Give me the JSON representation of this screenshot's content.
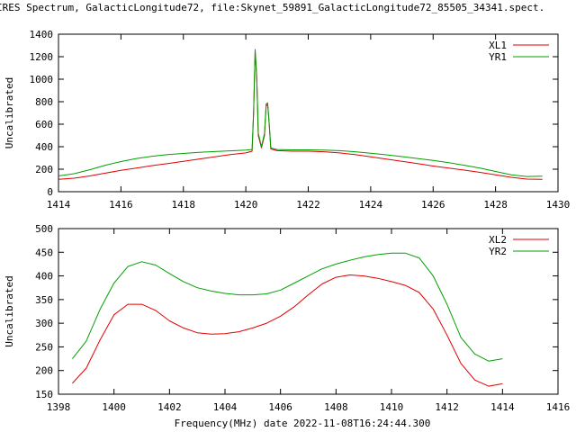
{
  "page_title": "IRES Spectrum, GalacticLongitude72, file:Skynet_59891_GalacticLongitude72_85505_34341.spect.",
  "xlabel": "Frequency(MHz) date 2022-11-08T16:24:44.300",
  "colors": {
    "red": "#e00000",
    "green": "#00a000",
    "axis": "#000000"
  },
  "chart_data": [
    {
      "type": "line",
      "title": "IRES Spectrum, GalacticLongitude72, file:Skynet_59891_GalacticLongitude72_85505_34341.spect.",
      "xlabel": "",
      "ylabel": "Uncalibrated",
      "xlim": [
        1414,
        1430
      ],
      "ylim": [
        0,
        1400
      ],
      "xticks": [
        1414,
        1416,
        1418,
        1420,
        1422,
        1424,
        1426,
        1428,
        1430
      ],
      "yticks": [
        0,
        200,
        400,
        600,
        800,
        1000,
        1200,
        1400
      ],
      "legend_position": "top-right",
      "series": [
        {
          "name": "XL1",
          "color": "#e00000",
          "points": [
            [
              1414.0,
              110
            ],
            [
              1414.5,
              120
            ],
            [
              1415.0,
              140
            ],
            [
              1415.5,
              165
            ],
            [
              1416.0,
              190
            ],
            [
              1416.5,
              210
            ],
            [
              1417.0,
              232
            ],
            [
              1417.5,
              250
            ],
            [
              1418.0,
              270
            ],
            [
              1418.5,
              290
            ],
            [
              1419.0,
              310
            ],
            [
              1419.5,
              330
            ],
            [
              1420.0,
              345
            ],
            [
              1420.2,
              360
            ],
            [
              1420.25,
              700
            ],
            [
              1420.3,
              1250
            ],
            [
              1420.35,
              1000
            ],
            [
              1420.4,
              500
            ],
            [
              1420.5,
              390
            ],
            [
              1420.6,
              500
            ],
            [
              1420.65,
              760
            ],
            [
              1420.7,
              780
            ],
            [
              1420.75,
              600
            ],
            [
              1420.8,
              380
            ],
            [
              1421.0,
              365
            ],
            [
              1421.5,
              360
            ],
            [
              1422.0,
              360
            ],
            [
              1422.5,
              355
            ],
            [
              1423.0,
              345
            ],
            [
              1423.5,
              330
            ],
            [
              1424.0,
              310
            ],
            [
              1424.5,
              290
            ],
            [
              1425.0,
              270
            ],
            [
              1425.5,
              250
            ],
            [
              1426.0,
              228
            ],
            [
              1426.5,
              210
            ],
            [
              1427.0,
              192
            ],
            [
              1427.5,
              172
            ],
            [
              1428.0,
              150
            ],
            [
              1428.5,
              128
            ],
            [
              1429.0,
              112
            ],
            [
              1429.5,
              110
            ]
          ]
        },
        {
          "name": "YR1",
          "color": "#00a000",
          "points": [
            [
              1414.0,
              140
            ],
            [
              1414.5,
              160
            ],
            [
              1415.0,
              195
            ],
            [
              1415.5,
              235
            ],
            [
              1416.0,
              268
            ],
            [
              1416.5,
              295
            ],
            [
              1417.0,
              315
            ],
            [
              1417.5,
              330
            ],
            [
              1418.0,
              340
            ],
            [
              1418.5,
              350
            ],
            [
              1419.0,
              357
            ],
            [
              1419.5,
              363
            ],
            [
              1420.0,
              370
            ],
            [
              1420.2,
              375
            ],
            [
              1420.25,
              720
            ],
            [
              1420.3,
              1265
            ],
            [
              1420.35,
              1020
            ],
            [
              1420.4,
              520
            ],
            [
              1420.5,
              400
            ],
            [
              1420.6,
              520
            ],
            [
              1420.65,
              780
            ],
            [
              1420.7,
              790
            ],
            [
              1420.75,
              610
            ],
            [
              1420.8,
              390
            ],
            [
              1421.0,
              375
            ],
            [
              1421.5,
              372
            ],
            [
              1422.0,
              372
            ],
            [
              1422.5,
              370
            ],
            [
              1423.0,
              365
            ],
            [
              1423.5,
              355
            ],
            [
              1424.0,
              342
            ],
            [
              1424.5,
              328
            ],
            [
              1425.0,
              312
            ],
            [
              1425.5,
              295
            ],
            [
              1426.0,
              278
            ],
            [
              1426.5,
              258
            ],
            [
              1427.0,
              235
            ],
            [
              1427.5,
              210
            ],
            [
              1428.0,
              180
            ],
            [
              1428.5,
              150
            ],
            [
              1429.0,
              135
            ],
            [
              1429.5,
              138
            ]
          ]
        }
      ]
    },
    {
      "type": "line",
      "title": "",
      "xlabel": "Frequency(MHz) date 2022-11-08T16:24:44.300",
      "ylabel": "Uncalibrated",
      "xlim": [
        1398,
        1416
      ],
      "ylim": [
        150,
        500
      ],
      "xticks": [
        1398,
        1400,
        1402,
        1404,
        1406,
        1408,
        1410,
        1412,
        1414,
        1416
      ],
      "yticks": [
        150,
        200,
        250,
        300,
        350,
        400,
        450,
        500
      ],
      "legend_position": "top-right",
      "series": [
        {
          "name": "XL2",
          "color": "#e00000",
          "points": [
            [
              1398.5,
              173
            ],
            [
              1399.0,
              205
            ],
            [
              1399.5,
              265
            ],
            [
              1400.0,
              318
            ],
            [
              1400.5,
              340
            ],
            [
              1401.0,
              340
            ],
            [
              1401.5,
              327
            ],
            [
              1402.0,
              305
            ],
            [
              1402.5,
              290
            ],
            [
              1403.0,
              280
            ],
            [
              1403.5,
              277
            ],
            [
              1404.0,
              278
            ],
            [
              1404.5,
              282
            ],
            [
              1405.0,
              290
            ],
            [
              1405.5,
              300
            ],
            [
              1406.0,
              315
            ],
            [
              1406.5,
              335
            ],
            [
              1407.0,
              360
            ],
            [
              1407.5,
              383
            ],
            [
              1408.0,
              397
            ],
            [
              1408.5,
              402
            ],
            [
              1409.0,
              400
            ],
            [
              1409.5,
              395
            ],
            [
              1410.0,
              388
            ],
            [
              1410.5,
              380
            ],
            [
              1411.0,
              365
            ],
            [
              1411.5,
              330
            ],
            [
              1412.0,
              275
            ],
            [
              1412.5,
              215
            ],
            [
              1413.0,
              180
            ],
            [
              1413.5,
              167
            ],
            [
              1414.0,
              172
            ]
          ]
        },
        {
          "name": "YR2",
          "color": "#00a000",
          "points": [
            [
              1398.5,
              225
            ],
            [
              1399.0,
              262
            ],
            [
              1399.5,
              330
            ],
            [
              1400.0,
              385
            ],
            [
              1400.5,
              420
            ],
            [
              1401.0,
              430
            ],
            [
              1401.5,
              423
            ],
            [
              1402.0,
              405
            ],
            [
              1402.5,
              388
            ],
            [
              1403.0,
              375
            ],
            [
              1403.5,
              368
            ],
            [
              1404.0,
              363
            ],
            [
              1404.5,
              360
            ],
            [
              1405.0,
              360
            ],
            [
              1405.5,
              362
            ],
            [
              1406.0,
              370
            ],
            [
              1406.5,
              385
            ],
            [
              1407.0,
              400
            ],
            [
              1407.5,
              415
            ],
            [
              1408.0,
              425
            ],
            [
              1408.5,
              433
            ],
            [
              1409.0,
              440
            ],
            [
              1409.5,
              445
            ],
            [
              1410.0,
              448
            ],
            [
              1410.5,
              448
            ],
            [
              1411.0,
              438
            ],
            [
              1411.5,
              400
            ],
            [
              1412.0,
              340
            ],
            [
              1412.5,
              270
            ],
            [
              1413.0,
              235
            ],
            [
              1413.5,
              220
            ],
            [
              1414.0,
              225
            ]
          ]
        }
      ]
    }
  ]
}
